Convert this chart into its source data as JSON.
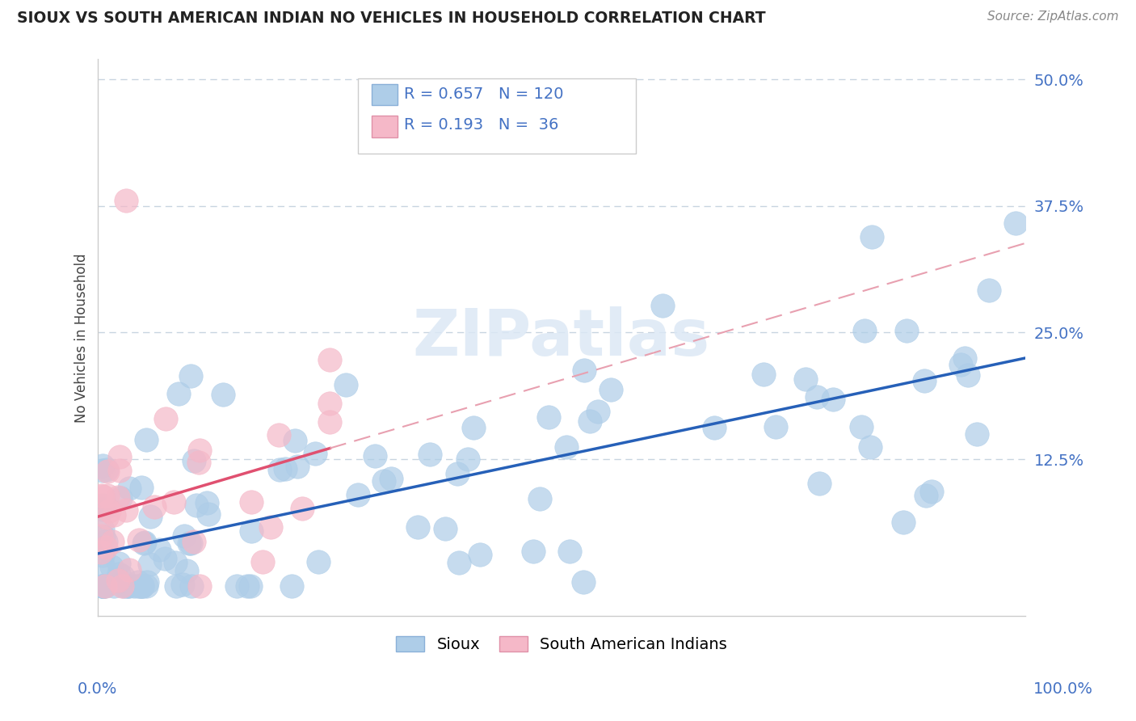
{
  "title": "SIOUX VS SOUTH AMERICAN INDIAN NO VEHICLES IN HOUSEHOLD CORRELATION CHART",
  "source": "Source: ZipAtlas.com",
  "ylabel": "No Vehicles in Household",
  "sioux_R": 0.657,
  "sioux_N": 120,
  "sa_R": 0.193,
  "sa_N": 36,
  "sioux_color": "#aecde8",
  "sa_color": "#f5b8c8",
  "sioux_line_color": "#2660b8",
  "sa_line_color": "#e05070",
  "sa_line_solid_color": "#e05070",
  "sa_line_dash_color": "#e8a0b0",
  "background_color": "#ffffff",
  "grid_color": "#c8d4e0",
  "watermark_color": "#dce8f5",
  "title_color": "#222222",
  "source_color": "#888888",
  "ytick_color": "#4472c4",
  "xtick_color": "#4472c4"
}
